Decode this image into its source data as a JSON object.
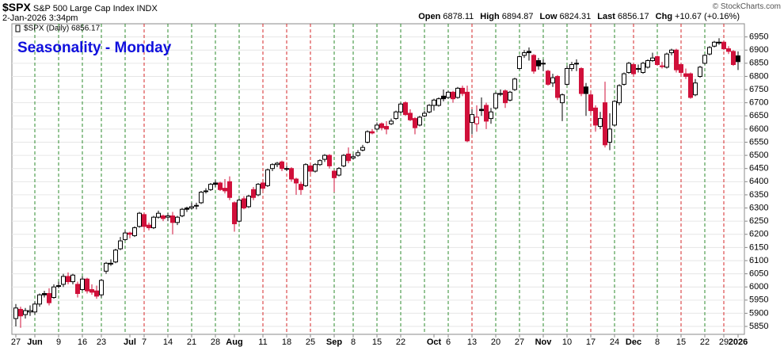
{
  "chart_data": {
    "type": "candlestick",
    "symbol": "$SPX",
    "name": "S&P 500 Large Cap Index INDX",
    "timestamp": "2-Jan-2026 3:34pm",
    "quote": [
      {
        "label": "Open",
        "value": "6878.11"
      },
      {
        "label": "High",
        "value": "6894.87"
      },
      {
        "label": "Low",
        "value": "6824.31"
      },
      {
        "label": "Last",
        "value": "6856.17"
      },
      {
        "label": "Chg",
        "value": "+10.67 (+0.16%)"
      }
    ],
    "copyright": "© StockCharts.com",
    "legend_label": "$SPX (Daily) 6856.17",
    "title": "Seasonality - Monday",
    "up_color": "#000000",
    "down_color": "#d0103a",
    "grid": true,
    "ylim": [
      5820,
      7000
    ],
    "yticks": [
      5850,
      5900,
      5950,
      6000,
      6050,
      6100,
      6150,
      6200,
      6250,
      6300,
      6350,
      6400,
      6450,
      6500,
      6550,
      6600,
      6650,
      6700,
      6750,
      6800,
      6850,
      6900,
      6950
    ],
    "x": [
      "2025-05-27",
      "2025-05-28",
      "2025-05-29",
      "2025-05-30",
      "2025-06-02",
      "2025-06-03",
      "2025-06-04",
      "2025-06-05",
      "2025-06-06",
      "2025-06-09",
      "2025-06-10",
      "2025-06-11",
      "2025-06-12",
      "2025-06-13",
      "2025-06-16",
      "2025-06-17",
      "2025-06-18",
      "2025-06-20",
      "2025-06-23",
      "2025-06-24",
      "2025-06-25",
      "2025-06-26",
      "2025-06-27",
      "2025-06-30",
      "2025-07-01",
      "2025-07-02",
      "2025-07-03",
      "2025-07-07",
      "2025-07-08",
      "2025-07-09",
      "2025-07-10",
      "2025-07-11",
      "2025-07-14",
      "2025-07-15",
      "2025-07-16",
      "2025-07-17",
      "2025-07-18",
      "2025-07-21",
      "2025-07-22",
      "2025-07-23",
      "2025-07-24",
      "2025-07-25",
      "2025-07-28",
      "2025-07-29",
      "2025-07-30",
      "2025-07-31",
      "2025-08-01",
      "2025-08-04",
      "2025-08-05",
      "2025-08-06",
      "2025-08-07",
      "2025-08-08",
      "2025-08-11",
      "2025-08-12",
      "2025-08-13",
      "2025-08-14",
      "2025-08-15",
      "2025-08-18",
      "2025-08-19",
      "2025-08-20",
      "2025-08-21",
      "2025-08-22",
      "2025-08-25",
      "2025-08-26",
      "2025-08-27",
      "2025-08-28",
      "2025-08-29",
      "2025-09-02",
      "2025-09-03",
      "2025-09-04",
      "2025-09-05",
      "2025-09-08",
      "2025-09-09",
      "2025-09-10",
      "2025-09-11",
      "2025-09-12",
      "2025-09-15",
      "2025-09-16",
      "2025-09-17",
      "2025-09-18",
      "2025-09-19",
      "2025-09-22",
      "2025-09-23",
      "2025-09-24",
      "2025-09-25",
      "2025-09-26",
      "2025-09-29",
      "2025-09-30",
      "2025-10-01",
      "2025-10-02",
      "2025-10-03",
      "2025-10-06",
      "2025-10-07",
      "2025-10-08",
      "2025-10-09",
      "2025-10-10",
      "2025-10-13",
      "2025-10-14",
      "2025-10-15",
      "2025-10-16",
      "2025-10-17",
      "2025-10-20",
      "2025-10-21",
      "2025-10-22",
      "2025-10-23",
      "2025-10-24",
      "2025-10-27",
      "2025-10-28",
      "2025-10-29",
      "2025-10-30",
      "2025-10-31",
      "2025-11-03",
      "2025-11-04",
      "2025-11-05",
      "2025-11-06",
      "2025-11-07",
      "2025-11-10",
      "2025-11-11",
      "2025-11-12",
      "2025-11-13",
      "2025-11-14",
      "2025-11-17",
      "2025-11-18",
      "2025-11-19",
      "2025-11-20",
      "2025-11-21",
      "2025-11-24",
      "2025-11-25",
      "2025-11-26",
      "2025-11-28",
      "2025-12-01",
      "2025-12-02",
      "2025-12-03",
      "2025-12-04",
      "2025-12-05",
      "2025-12-08",
      "2025-12-09",
      "2025-12-10",
      "2025-12-11",
      "2025-12-12",
      "2025-12-15",
      "2025-12-16",
      "2025-12-17",
      "2025-12-18",
      "2025-12-19",
      "2025-12-22",
      "2025-12-23",
      "2025-12-24",
      "2025-12-26",
      "2025-12-29",
      "2025-12-30",
      "2025-12-31",
      "2026-01-02"
    ],
    "open": [
      5880,
      5915,
      5895,
      5905,
      5905,
      5935,
      5975,
      5975,
      5960,
      6005,
      6010,
      6040,
      6020,
      6010,
      5990,
      6030,
      5990,
      5985,
      5970,
      6060,
      6090,
      6095,
      6145,
      6180,
      6205,
      6195,
      6230,
      6275,
      6235,
      6225,
      6265,
      6270,
      6265,
      6270,
      6245,
      6270,
      6300,
      6300,
      6310,
      6320,
      6365,
      6370,
      6395,
      6395,
      6375,
      6400,
      6320,
      6250,
      6335,
      6305,
      6370,
      6350,
      6395,
      6385,
      6450,
      6465,
      6475,
      6450,
      6450,
      6410,
      6390,
      6385,
      6460,
      6440,
      6465,
      6485,
      6500,
      6440,
      6425,
      6460,
      6505,
      6490,
      6500,
      6520,
      6550,
      6590,
      6600,
      6620,
      6610,
      6620,
      6640,
      6665,
      6700,
      6660,
      6640,
      6615,
      6650,
      6665,
      6690,
      6690,
      6725,
      6720,
      6740,
      6720,
      6755,
      6740,
      6625,
      6620,
      6675,
      6690,
      6640,
      6680,
      6735,
      6745,
      6710,
      6750,
      6830,
      6880,
      6895,
      6880,
      6860,
      6850,
      6820,
      6775,
      6800,
      6700,
      6770,
      6830,
      6850,
      6830,
      6760,
      6730,
      6680,
      6610,
      6700,
      6550,
      6615,
      6700,
      6770,
      6815,
      6845,
      6830,
      6815,
      6835,
      6860,
      6875,
      6840,
      6835,
      6890,
      6900,
      6845,
      6810,
      6810,
      6730,
      6800,
      6850,
      6885,
      6915,
      6930,
      6930,
      6905,
      6895,
      6878.11
    ],
    "high": [
      5935,
      5925,
      5920,
      5930,
      5945,
      5975,
      5985,
      5995,
      6010,
      6020,
      6050,
      6055,
      6050,
      6020,
      6040,
      6035,
      6010,
      6005,
      6030,
      6095,
      6105,
      6145,
      6190,
      6215,
      6210,
      6230,
      6285,
      6280,
      6245,
      6270,
      6290,
      6275,
      6280,
      6285,
      6270,
      6300,
      6305,
      6320,
      6320,
      6365,
      6375,
      6395,
      6405,
      6400,
      6410,
      6420,
      6325,
      6335,
      6345,
      6350,
      6380,
      6395,
      6400,
      6450,
      6470,
      6475,
      6480,
      6460,
      6455,
      6415,
      6400,
      6470,
      6465,
      6470,
      6485,
      6505,
      6505,
      6445,
      6455,
      6505,
      6530,
      6505,
      6520,
      6540,
      6595,
      6600,
      6625,
      6625,
      6630,
      6640,
      6670,
      6700,
      6705,
      6675,
      6645,
      6650,
      6670,
      6695,
      6715,
      6720,
      6750,
      6745,
      6745,
      6760,
      6765,
      6765,
      6675,
      6690,
      6720,
      6700,
      6680,
      6740,
      6750,
      6750,
      6745,
      6795,
      6880,
      6900,
      6910,
      6885,
      6870,
      6865,
      6825,
      6810,
      6805,
      6735,
      6840,
      6855,
      6865,
      6835,
      6775,
      6740,
      6690,
      6665,
      6780,
      6660,
      6710,
      6770,
      6815,
      6855,
      6850,
      6845,
      6855,
      6865,
      6890,
      6880,
      6855,
      6890,
      6905,
      6905,
      6850,
      6830,
      6815,
      6790,
      6840,
      6885,
      6915,
      6935,
      6945,
      6935,
      6915,
      6900,
      6894.87
    ],
    "low": [
      5850,
      5845,
      5880,
      5890,
      5895,
      5925,
      5960,
      5930,
      5955,
      5995,
      6000,
      6010,
      6010,
      5960,
      5985,
      5975,
      5970,
      5955,
      5960,
      6050,
      6080,
      6090,
      6140,
      6175,
      6185,
      6190,
      6225,
      6220,
      6215,
      6220,
      6260,
      6250,
      6250,
      6200,
      6235,
      6265,
      6285,
      6295,
      6295,
      6315,
      6355,
      6365,
      6380,
      6365,
      6355,
      6330,
      6210,
      6245,
      6295,
      6300,
      6330,
      6345,
      6365,
      6380,
      6440,
      6455,
      6440,
      6440,
      6400,
      6350,
      6350,
      6380,
      6430,
      6435,
      6460,
      6475,
      6450,
      6360,
      6420,
      6455,
      6470,
      6485,
      6495,
      6515,
      6545,
      6580,
      6595,
      6595,
      6580,
      6615,
      6635,
      6660,
      6650,
      6630,
      6580,
      6610,
      6645,
      6660,
      6670,
      6685,
      6705,
      6715,
      6700,
      6715,
      6725,
      6550,
      6580,
      6590,
      6650,
      6600,
      6620,
      6675,
      6725,
      6680,
      6705,
      6745,
      6825,
      6870,
      6860,
      6810,
      6825,
      6820,
      6765,
      6760,
      6710,
      6630,
      6765,
      6820,
      6820,
      6725,
      6650,
      6660,
      6590,
      6600,
      6530,
      6520,
      6610,
      6690,
      6765,
      6810,
      6800,
      6815,
      6810,
      6830,
      6855,
      6840,
      6830,
      6830,
      6880,
      6815,
      6805,
      6790,
      6715,
      6725,
      6795,
      6845,
      6880,
      6910,
      6920,
      6900,
      6885,
      6840,
      6824.31
    ],
    "close": [
      5920,
      5890,
      5910,
      5910,
      5935,
      5970,
      5970,
      5940,
      6000,
      6005,
      6040,
      6020,
      6045,
      5975,
      6030,
      5985,
      5980,
      5965,
      6025,
      6090,
      6090,
      6140,
      6175,
      6205,
      6200,
      6225,
      6280,
      6230,
      6225,
      6265,
      6280,
      6260,
      6270,
      6245,
      6265,
      6295,
      6295,
      6305,
      6310,
      6360,
      6365,
      6390,
      6390,
      6370,
      6365,
      6340,
      6240,
      6330,
      6300,
      6345,
      6340,
      6390,
      6375,
      6445,
      6465,
      6470,
      6450,
      6450,
      6410,
      6395,
      6370,
      6465,
      6440,
      6465,
      6480,
      6500,
      6460,
      6415,
      6450,
      6500,
      6480,
      6495,
      6510,
      6530,
      6590,
      6585,
      6615,
      6605,
      6600,
      6630,
      6665,
      6695,
      6655,
      6635,
      6605,
      6645,
      6660,
      6690,
      6710,
      6715,
      6715,
      6740,
      6715,
      6755,
      6735,
      6555,
      6655,
      6645,
      6670,
      6630,
      6665,
      6735,
      6735,
      6700,
      6740,
      6790,
      6875,
      6890,
      6890,
      6820,
      6840,
      6850,
      6770,
      6795,
      6720,
      6730,
      6830,
      6845,
      6850,
      6735,
      6735,
      6670,
      6615,
      6640,
      6540,
      6600,
      6705,
      6765,
      6810,
      6850,
      6810,
      6830,
      6850,
      6860,
      6870,
      6845,
      6840,
      6885,
      6900,
      6825,
      6815,
      6800,
      6720,
      6775,
      6835,
      6880,
      6910,
      6930,
      6930,
      6905,
      6895,
      6845,
      6856.17
    ],
    "xticks": [
      {
        "value": "2025-05-27",
        "label": "27"
      },
      {
        "value": "2025-06-02",
        "label": "Jun"
      },
      {
        "value": "2025-06-09",
        "label": "9"
      },
      {
        "value": "2025-06-16",
        "label": "16"
      },
      {
        "value": "2025-06-23",
        "label": "23"
      },
      {
        "value": "2025-07-01",
        "label": "Jul"
      },
      {
        "value": "2025-07-07",
        "label": "7"
      },
      {
        "value": "2025-07-14",
        "label": "14"
      },
      {
        "value": "2025-07-21",
        "label": "21"
      },
      {
        "value": "2025-07-28",
        "label": "28"
      },
      {
        "value": "2025-08-01",
        "label": "Aug"
      },
      {
        "value": "2025-08-11",
        "label": "11"
      },
      {
        "value": "2025-08-18",
        "label": "18"
      },
      {
        "value": "2025-08-25",
        "label": "25"
      },
      {
        "value": "2025-09-02",
        "label": "Sep"
      },
      {
        "value": "2025-09-08",
        "label": "8"
      },
      {
        "value": "2025-09-15",
        "label": "15"
      },
      {
        "value": "2025-09-22",
        "label": "22"
      },
      {
        "value": "2025-10-01",
        "label": "Oct"
      },
      {
        "value": "2025-10-06",
        "label": "6"
      },
      {
        "value": "2025-10-13",
        "label": "13"
      },
      {
        "value": "2025-10-20",
        "label": "20"
      },
      {
        "value": "2025-10-27",
        "label": "27"
      },
      {
        "value": "2025-11-03",
        "label": "Nov"
      },
      {
        "value": "2025-11-10",
        "label": "10"
      },
      {
        "value": "2025-11-17",
        "label": "17"
      },
      {
        "value": "2025-11-24",
        "label": "24"
      },
      {
        "value": "2025-12-01",
        "label": "Dec"
      },
      {
        "value": "2025-12-08",
        "label": "8"
      },
      {
        "value": "2025-12-15",
        "label": "15"
      },
      {
        "value": "2025-12-22",
        "label": "22"
      },
      {
        "value": "2025-12-29",
        "label": "29"
      },
      {
        "value": "2026-01-02",
        "label": "2026"
      }
    ],
    "monday_lines": [
      {
        "x": "2025-06-02",
        "color": "#2e8b2e"
      },
      {
        "x": "2025-06-09",
        "color": "#2e8b2e"
      },
      {
        "x": "2025-06-16",
        "color": "#2e8b2e"
      },
      {
        "x": "2025-06-23",
        "color": "#2e8b2e"
      },
      {
        "x": "2025-06-30",
        "color": "#2e8b2e"
      },
      {
        "x": "2025-07-07",
        "color": "#d62728"
      },
      {
        "x": "2025-07-14",
        "color": "#2e8b2e"
      },
      {
        "x": "2025-07-21",
        "color": "#2e8b2e"
      },
      {
        "x": "2025-07-28",
        "color": "#2e8b2e"
      },
      {
        "x": "2025-08-04",
        "color": "#2e8b2e"
      },
      {
        "x": "2025-08-11",
        "color": "#d62728"
      },
      {
        "x": "2025-08-18",
        "color": "#d62728"
      },
      {
        "x": "2025-08-25",
        "color": "#d62728"
      },
      {
        "x": "2025-09-02",
        "color": "#2e8b2e"
      },
      {
        "x": "2025-09-08",
        "color": "#2e8b2e"
      },
      {
        "x": "2025-09-15",
        "color": "#2e8b2e"
      },
      {
        "x": "2025-09-22",
        "color": "#2e8b2e"
      },
      {
        "x": "2025-09-29",
        "color": "#2e8b2e"
      },
      {
        "x": "2025-10-06",
        "color": "#2e8b2e"
      },
      {
        "x": "2025-10-13",
        "color": "#d62728"
      },
      {
        "x": "2025-10-20",
        "color": "#2e8b2e"
      },
      {
        "x": "2025-10-27",
        "color": "#2e8b2e"
      },
      {
        "x": "2025-11-03",
        "color": "#2e8b2e"
      },
      {
        "x": "2025-11-10",
        "color": "#2e8b2e"
      },
      {
        "x": "2025-11-17",
        "color": "#d62728"
      },
      {
        "x": "2025-11-24",
        "color": "#2e8b2e"
      },
      {
        "x": "2025-12-01",
        "color": "#d62728"
      },
      {
        "x": "2025-12-08",
        "color": "#2e8b2e"
      },
      {
        "x": "2025-12-15",
        "color": "#d62728"
      },
      {
        "x": "2025-12-22",
        "color": "#2e8b2e"
      },
      {
        "x": "2025-12-29",
        "color": "#d62728"
      }
    ]
  }
}
